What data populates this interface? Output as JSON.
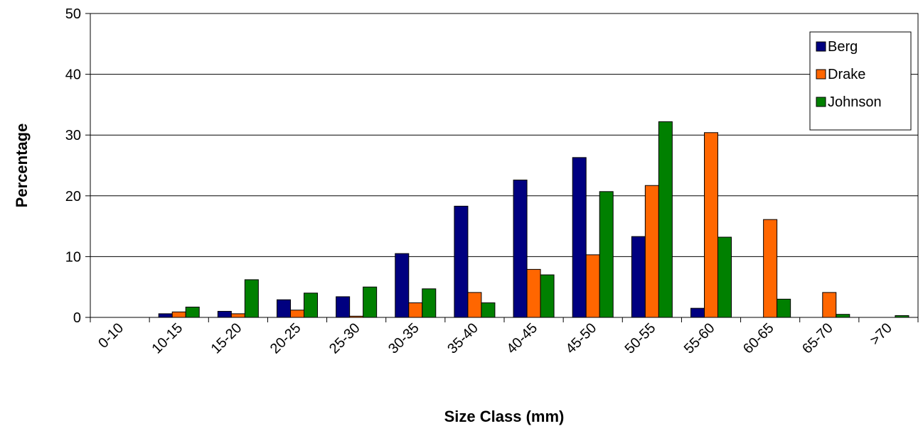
{
  "chart_data": {
    "type": "bar",
    "title": "",
    "xlabel": "Size Class (mm)",
    "ylabel": "Percentage",
    "ylim": [
      0,
      50
    ],
    "yticks": [
      0,
      10,
      20,
      30,
      40,
      50
    ],
    "grid": true,
    "legend_position": "top-right",
    "categories": [
      "0-10",
      "10-15",
      "15-20",
      "20-25",
      "25-30",
      "30-35",
      "35-40",
      "40-45",
      "45-50",
      "50-55",
      "55-60",
      "60-65",
      "65-70",
      ">70"
    ],
    "series": [
      {
        "name": "Berg",
        "color": "#000080",
        "values": [
          0,
          0.6,
          1.0,
          2.9,
          3.4,
          10.5,
          18.3,
          22.6,
          26.3,
          13.3,
          1.5,
          0,
          0,
          0
        ]
      },
      {
        "name": "Drake",
        "color": "#FF6600",
        "values": [
          0,
          0.9,
          0.6,
          1.2,
          0.2,
          2.4,
          4.1,
          7.9,
          10.3,
          21.7,
          30.4,
          16.1,
          4.1,
          0
        ]
      },
      {
        "name": "Johnson",
        "color": "#008000",
        "values": [
          0,
          1.7,
          6.2,
          4.0,
          5.0,
          4.7,
          2.4,
          7.0,
          20.7,
          32.2,
          13.2,
          3.0,
          0.5,
          0.3
        ]
      }
    ]
  }
}
